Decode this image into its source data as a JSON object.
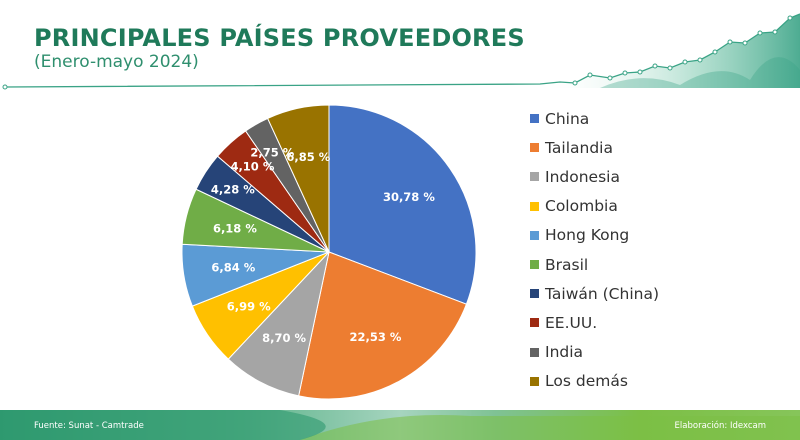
{
  "header": {
    "title": "PRINCIPALES PAÍSES PROVEEDORES",
    "subtitle": "(Enero-mayo 2024)"
  },
  "footer": {
    "source": "Fuente: Sunat - Camtrade",
    "credit": "Elaboración: Idexcam"
  },
  "colors": {
    "title": "#1f7a5a",
    "decoration": "#3aa386"
  },
  "chart_data": {
    "type": "pie",
    "title": "",
    "legend_position": "right",
    "slices": [
      {
        "label": "China",
        "value": 30.78,
        "value_label": "30,78 %",
        "color": "#4472c4"
      },
      {
        "label": "Tailandia",
        "value": 22.53,
        "value_label": "22,53 %",
        "color": "#ed7d31"
      },
      {
        "label": "Indonesia",
        "value": 8.7,
        "value_label": "8,70 %",
        "color": "#a5a5a5"
      },
      {
        "label": "Colombia",
        "value": 6.99,
        "value_label": "6,99 %",
        "color": "#ffc000"
      },
      {
        "label": "Hong Kong",
        "value": 6.84,
        "value_label": "6,84 %",
        "color": "#5b9bd5"
      },
      {
        "label": "Brasil",
        "value": 6.18,
        "value_label": "6,18 %",
        "color": "#70ad47"
      },
      {
        "label": "Taiwán (China)",
        "value": 4.28,
        "value_label": "4,28 %",
        "color": "#264478"
      },
      {
        "label": "EE.UU.",
        "value": 4.1,
        "value_label": "4,10 %",
        "color": "#9e2a12"
      },
      {
        "label": "India",
        "value": 2.75,
        "value_label": "2,75 %",
        "color": "#636363"
      },
      {
        "label": "Los demás",
        "value": 6.85,
        "value_label": "6,85 %",
        "color": "#997300"
      }
    ]
  }
}
